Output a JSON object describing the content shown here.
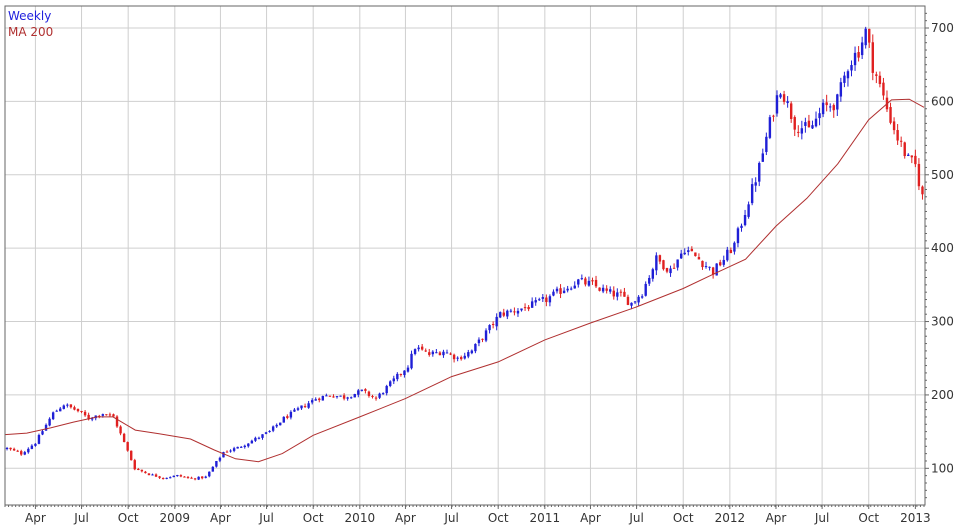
{
  "chart_data": {
    "type": "candlestick",
    "title": "",
    "xlabel": "",
    "ylabel": "",
    "ylim": [
      50,
      730
    ],
    "grid": true,
    "legend_position": "top-left",
    "legend": {
      "weekly": "Weekly",
      "ma": "MA 200"
    },
    "colors": {
      "up": "#1f1fd6",
      "down": "#e02020",
      "ma": "#b03030",
      "grid": "#cfcfcf",
      "axis": "#666666"
    },
    "y_ticks": [
      {
        "value": 100,
        "label": "100"
      },
      {
        "value": 200,
        "label": "200"
      },
      {
        "value": 300,
        "label": "300"
      },
      {
        "value": 400,
        "label": "400"
      },
      {
        "value": 500,
        "label": "500"
      },
      {
        "value": 600,
        "label": "600"
      },
      {
        "value": 700,
        "label": "700"
      }
    ],
    "x_ticks": [
      {
        "date": "2008-04-01",
        "label": "Apr"
      },
      {
        "date": "2008-07-01",
        "label": "Jul"
      },
      {
        "date": "2008-10-01",
        "label": "Oct"
      },
      {
        "date": "2009-01-01",
        "label": "2009"
      },
      {
        "date": "2009-04-01",
        "label": "Apr"
      },
      {
        "date": "2009-07-01",
        "label": "Jul"
      },
      {
        "date": "2009-10-01",
        "label": "Oct"
      },
      {
        "date": "2010-01-01",
        "label": "2010"
      },
      {
        "date": "2010-04-01",
        "label": "Apr"
      },
      {
        "date": "2010-07-01",
        "label": "Jul"
      },
      {
        "date": "2010-10-01",
        "label": "Oct"
      },
      {
        "date": "2011-01-01",
        "label": "2011"
      },
      {
        "date": "2011-04-01",
        "label": "Apr"
      },
      {
        "date": "2011-07-01",
        "label": "Jul"
      },
      {
        "date": "2011-10-01",
        "label": "Oct"
      },
      {
        "date": "2012-01-01",
        "label": "2012"
      },
      {
        "date": "2012-04-01",
        "label": "Apr"
      },
      {
        "date": "2012-07-01",
        "label": "Jul"
      },
      {
        "date": "2012-10-01",
        "label": "Oct"
      },
      {
        "date": "2013-01-01",
        "label": "2013"
      }
    ],
    "x_range": [
      "2008-02-01",
      "2013-01-20"
    ],
    "close_trend": [
      [
        "2008-02-05",
        127
      ],
      [
        "2008-03-04",
        120
      ],
      [
        "2008-04-01",
        135
      ],
      [
        "2008-05-06",
        175
      ],
      [
        "2008-05-27",
        187
      ],
      [
        "2008-06-24",
        178
      ],
      [
        "2008-07-15",
        168
      ],
      [
        "2008-08-12",
        175
      ],
      [
        "2008-09-02",
        170
      ],
      [
        "2008-09-23",
        135
      ],
      [
        "2008-10-14",
        100
      ],
      [
        "2008-11-11",
        92
      ],
      [
        "2008-12-09",
        87
      ],
      [
        "2009-01-06",
        90
      ],
      [
        "2009-02-03",
        86
      ],
      [
        "2009-03-03",
        88
      ],
      [
        "2009-04-07",
        122
      ],
      [
        "2009-05-05",
        128
      ],
      [
        "2009-06-09",
        140
      ],
      [
        "2009-07-07",
        150
      ],
      [
        "2009-08-04",
        168
      ],
      [
        "2009-09-01",
        180
      ],
      [
        "2009-10-06",
        195
      ],
      [
        "2009-11-03",
        200
      ],
      [
        "2009-12-01",
        197
      ],
      [
        "2010-01-05",
        205
      ],
      [
        "2010-02-02",
        195
      ],
      [
        "2010-03-02",
        215
      ],
      [
        "2010-04-06",
        240
      ],
      [
        "2010-04-20",
        265
      ],
      [
        "2010-05-18",
        255
      ],
      [
        "2010-06-15",
        260
      ],
      [
        "2010-07-13",
        250
      ],
      [
        "2010-08-10",
        260
      ],
      [
        "2010-09-07",
        285
      ],
      [
        "2010-10-05",
        310
      ],
      [
        "2010-11-02",
        315
      ],
      [
        "2010-12-07",
        322
      ],
      [
        "2011-01-04",
        330
      ],
      [
        "2011-02-08",
        345
      ],
      [
        "2011-03-08",
        355
      ],
      [
        "2011-04-05",
        350
      ],
      [
        "2011-05-03",
        340
      ],
      [
        "2011-05-31",
        335
      ],
      [
        "2011-06-21",
        325
      ],
      [
        "2011-07-12",
        340
      ],
      [
        "2011-08-09",
        385
      ],
      [
        "2011-09-06",
        370
      ],
      [
        "2011-10-04",
        400
      ],
      [
        "2011-11-01",
        385
      ],
      [
        "2011-11-29",
        368
      ],
      [
        "2011-12-20",
        385
      ],
      [
        "2012-01-10",
        405
      ],
      [
        "2012-01-31",
        450
      ],
      [
        "2012-02-28",
        510
      ],
      [
        "2012-03-27",
        590
      ],
      [
        "2012-04-10",
        620
      ],
      [
        "2012-05-08",
        570
      ],
      [
        "2012-06-05",
        560
      ],
      [
        "2012-07-03",
        590
      ],
      [
        "2012-07-31",
        600
      ],
      [
        "2012-08-21",
        650
      ],
      [
        "2012-09-11",
        670
      ],
      [
        "2012-09-25",
        695
      ],
      [
        "2012-10-09",
        650
      ],
      [
        "2012-11-06",
        590
      ],
      [
        "2012-11-27",
        550
      ],
      [
        "2012-12-18",
        520
      ],
      [
        "2013-01-01",
        512
      ],
      [
        "2013-01-15",
        470
      ]
    ],
    "ma_200": [
      [
        "2008-02-01",
        146
      ],
      [
        "2008-03-15",
        148
      ],
      [
        "2008-05-01",
        155
      ],
      [
        "2008-06-15",
        163
      ],
      [
        "2008-08-01",
        170
      ],
      [
        "2008-09-01",
        170
      ],
      [
        "2008-10-15",
        152
      ],
      [
        "2008-12-01",
        147
      ],
      [
        "2009-02-01",
        140
      ],
      [
        "2009-03-20",
        125
      ],
      [
        "2009-05-01",
        113
      ],
      [
        "2009-06-15",
        109
      ],
      [
        "2009-08-01",
        120
      ],
      [
        "2009-10-01",
        145
      ],
      [
        "2010-01-01",
        170
      ],
      [
        "2010-04-01",
        195
      ],
      [
        "2010-07-01",
        225
      ],
      [
        "2010-10-01",
        245
      ],
      [
        "2011-01-01",
        275
      ],
      [
        "2011-04-01",
        298
      ],
      [
        "2011-07-01",
        320
      ],
      [
        "2011-10-01",
        345
      ],
      [
        "2011-12-01",
        365
      ],
      [
        "2012-02-01",
        385
      ],
      [
        "2012-04-01",
        430
      ],
      [
        "2012-06-01",
        468
      ],
      [
        "2012-08-01",
        515
      ],
      [
        "2012-10-01",
        575
      ],
      [
        "2012-11-15",
        602
      ],
      [
        "2012-12-20",
        603
      ],
      [
        "2013-01-18",
        592
      ]
    ]
  }
}
